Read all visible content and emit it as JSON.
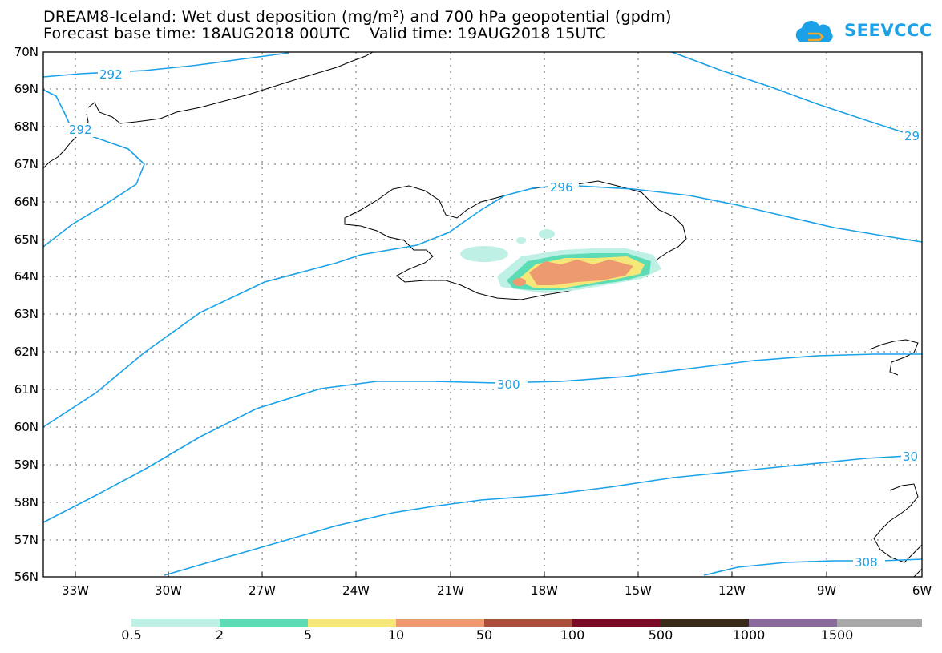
{
  "header": {
    "title": "DREAM8-Iceland: Wet dust deposition (mg/m²) and 700 hPa geopotential (gpdm)",
    "subtitle": "Forecast base time: 18AUG2018 00UTC    Valid time: 19AUG2018 15UTC"
  },
  "logo": {
    "text": "SEEVCCC",
    "color": "#1aa1e8"
  },
  "map": {
    "region": "Iceland",
    "lat_range": [
      56,
      70
    ],
    "lon_range": [
      -34,
      -6
    ],
    "lat_labels": [
      "70N",
      "69N",
      "68N",
      "67N",
      "66N",
      "65N",
      "64N",
      "63N",
      "62N",
      "61N",
      "60N",
      "59N",
      "58N",
      "57N",
      "56N"
    ],
    "lon_labels": [
      "33W",
      "30W",
      "27W",
      "24W",
      "21W",
      "18W",
      "15W",
      "12W",
      "9W",
      "6W"
    ],
    "grid": "dotted",
    "contour_color": "#1aa1e8",
    "contour_labels": [
      "292",
      "292",
      "29",
      "296",
      "300",
      "30",
      "308"
    ]
  },
  "colorbar": {
    "labels": [
      "0.5",
      "2",
      "5",
      "10",
      "50",
      "100",
      "500",
      "1000",
      "1500"
    ],
    "colors": [
      "#bff0e6",
      "#5cdcb4",
      "#f6e878",
      "#ee9a70",
      "#a8503c",
      "#7a0a26",
      "#3a2a1a",
      "#8a6a9a",
      "#a8a8a8"
    ]
  }
}
